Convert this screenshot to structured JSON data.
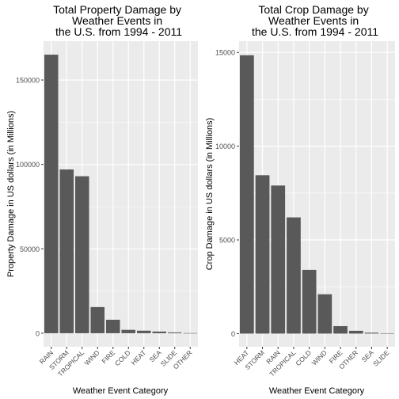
{
  "chart_data": [
    {
      "type": "bar",
      "title_lines": [
        "Total Property Damage by",
        "Weather Events in",
        "the U.S. from 1994 - 2011"
      ],
      "xlabel": "Weather Event Category",
      "ylabel": "Property Damage in US dollars (in Millions)",
      "categories": [
        "RAIN",
        "STORM",
        "TROPICAL",
        "WIND",
        "FIRE",
        "COLD",
        "HEAT",
        "SEA",
        "SLIDE",
        "OTHER"
      ],
      "values": [
        165000,
        97000,
        93000,
        15500,
        8000,
        2000,
        1500,
        1000,
        500,
        100
      ],
      "yticks": [
        0,
        50000,
        100000,
        150000
      ],
      "ylim": [
        -8000,
        173000
      ],
      "grid": true,
      "bar_color": "#595959",
      "panel_color": "#ebebeb"
    },
    {
      "type": "bar",
      "title_lines": [
        "Total Crop Damage by",
        "Weather Events in",
        "the U.S. from 1994 - 2011"
      ],
      "xlabel": "Weather Event Category",
      "ylabel": "Crop Damage in US dollars (in Millions)",
      "categories": [
        "HEAT",
        "STORM",
        "RAIN",
        "TROPICAL",
        "COLD",
        "WIND",
        "FIRE",
        "OTHER",
        "SEA",
        "SLIDE"
      ],
      "values": [
        14850,
        8450,
        7900,
        6200,
        3400,
        2100,
        400,
        150,
        50,
        20
      ],
      "yticks": [
        0,
        5000,
        10000,
        15000
      ],
      "ylim": [
        -700,
        15600
      ],
      "grid": true,
      "bar_color": "#595959",
      "panel_color": "#ebebeb"
    }
  ]
}
